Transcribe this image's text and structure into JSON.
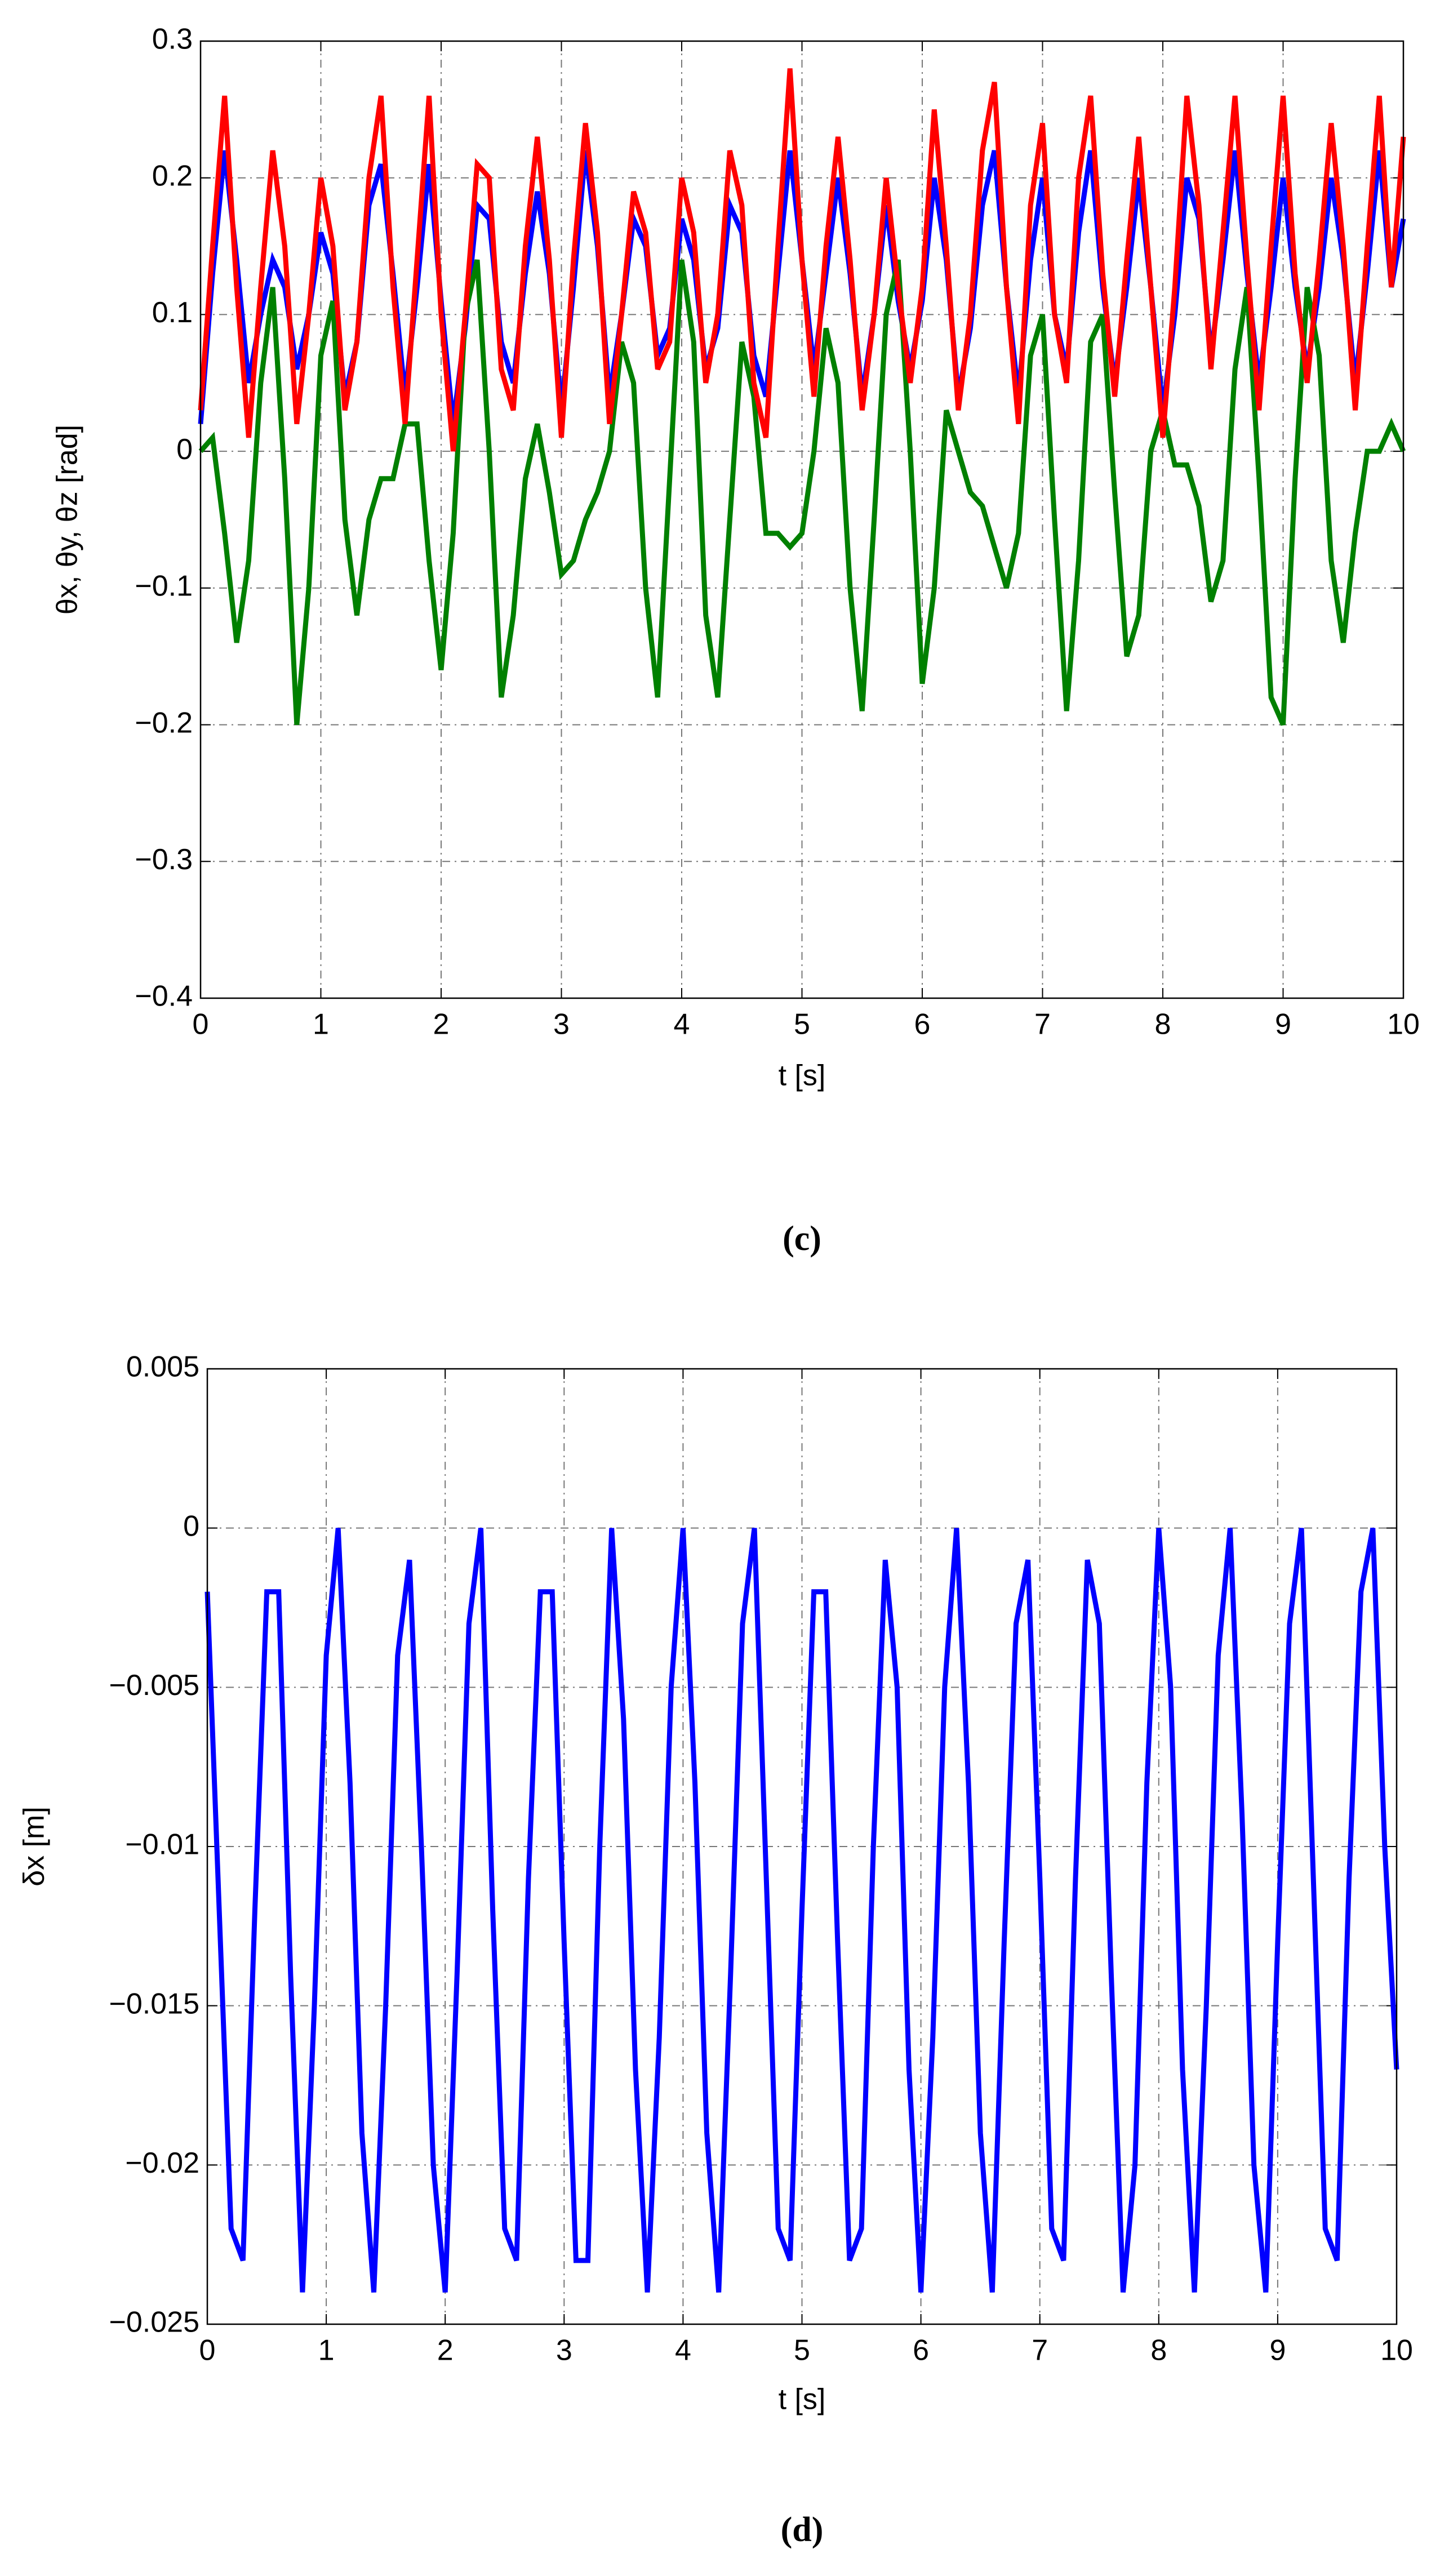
{
  "chart_data": [
    {
      "type": "line",
      "caption": "(c)",
      "xlabel": "t [s]",
      "ylabel": "θx, θy, θz [rad]",
      "xlim": [
        0,
        10
      ],
      "xticks": [
        0,
        1,
        2,
        3,
        4,
        5,
        6,
        7,
        8,
        9,
        10
      ],
      "ylim": [
        -0.4,
        0.3
      ],
      "yticks": [
        {
          "value": -0.4,
          "label": "−0.4"
        },
        {
          "value": -0.3,
          "label": "−0.3"
        },
        {
          "value": -0.2,
          "label": "−0.2"
        },
        {
          "value": -0.1,
          "label": "−0.1"
        },
        0,
        0.1,
        0.2,
        0.3
      ],
      "grid": true,
      "x": [
        0,
        0.1,
        0.2,
        0.3,
        0.4,
        0.5,
        0.6,
        0.7,
        0.8,
        0.9,
        1,
        1.1,
        1.2,
        1.3,
        1.4,
        1.5,
        1.6,
        1.7,
        1.8,
        1.9,
        2,
        2.1,
        2.2,
        2.3,
        2.4,
        2.5,
        2.6,
        2.7,
        2.8,
        2.9,
        3,
        3.1,
        3.2,
        3.3,
        3.4,
        3.5,
        3.6,
        3.7,
        3.8,
        3.9,
        4,
        4.1,
        4.2,
        4.3,
        4.4,
        4.5,
        4.6,
        4.7,
        4.8,
        4.9,
        5,
        5.1,
        5.2,
        5.3,
        5.4,
        5.5,
        5.6,
        5.7,
        5.8,
        5.9,
        6,
        6.1,
        6.2,
        6.3,
        6.4,
        6.5,
        6.6,
        6.7,
        6.8,
        6.9,
        7,
        7.1,
        7.2,
        7.3,
        7.4,
        7.5,
        7.6,
        7.7,
        7.8,
        7.9,
        8,
        8.1,
        8.2,
        8.3,
        8.4,
        8.5,
        8.6,
        8.7,
        8.8,
        8.9,
        9,
        9.1,
        9.2,
        9.3,
        9.4,
        9.5,
        9.6,
        9.7,
        9.8,
        9.9,
        10
      ],
      "series": [
        {
          "color": "#0000ff",
          "values": [
            0.02,
            0.13,
            0.22,
            0.14,
            0.05,
            0.1,
            0.14,
            0.12,
            0.06,
            0.1,
            0.16,
            0.13,
            0.04,
            0.08,
            0.18,
            0.21,
            0.13,
            0.04,
            0.12,
            0.21,
            0.11,
            0.02,
            0.09,
            0.18,
            0.17,
            0.08,
            0.05,
            0.13,
            0.19,
            0.13,
            0.03,
            0.12,
            0.22,
            0.15,
            0.04,
            0.1,
            0.17,
            0.15,
            0.07,
            0.09,
            0.17,
            0.14,
            0.06,
            0.09,
            0.18,
            0.16,
            0.07,
            0.04,
            0.13,
            0.22,
            0.14,
            0.06,
            0.13,
            0.2,
            0.13,
            0.04,
            0.1,
            0.18,
            0.11,
            0.06,
            0.11,
            0.2,
            0.14,
            0.04,
            0.09,
            0.18,
            0.22,
            0.12,
            0.04,
            0.14,
            0.2,
            0.1,
            0.06,
            0.16,
            0.22,
            0.12,
            0.05,
            0.12,
            0.2,
            0.12,
            0.03,
            0.1,
            0.2,
            0.17,
            0.07,
            0.14,
            0.22,
            0.13,
            0.05,
            0.12,
            0.2,
            0.12,
            0.06,
            0.12,
            0.2,
            0.14,
            0.05,
            0.13,
            0.22,
            0.12,
            0.17
          ]
        },
        {
          "color": "#008000",
          "values": [
            0,
            0.01,
            -0.06,
            -0.14,
            -0.08,
            0.05,
            0.12,
            -0.02,
            -0.2,
            -0.1,
            0.07,
            0.11,
            -0.05,
            -0.12,
            -0.05,
            -0.02,
            -0.02,
            0.02,
            0.02,
            -0.08,
            -0.16,
            -0.06,
            0.1,
            0.14,
            0,
            -0.18,
            -0.12,
            -0.02,
            0.02,
            -0.03,
            -0.09,
            -0.08,
            -0.05,
            -0.03,
            0,
            0.08,
            0.05,
            -0.1,
            -0.18,
            -0.02,
            0.14,
            0.08,
            -0.12,
            -0.18,
            -0.05,
            0.08,
            0.04,
            -0.06,
            -0.06,
            -0.07,
            -0.06,
            0,
            0.09,
            0.05,
            -0.1,
            -0.19,
            -0.05,
            0.1,
            0.14,
            0,
            -0.17,
            -0.1,
            0.03,
            0,
            -0.03,
            -0.04,
            -0.07,
            -0.1,
            -0.06,
            0.07,
            0.1,
            -0.05,
            -0.19,
            -0.08,
            0.08,
            0.1,
            -0.03,
            -0.15,
            -0.12,
            0,
            0.03,
            -0.01,
            -0.01,
            -0.04,
            -0.11,
            -0.08,
            0.06,
            0.12,
            -0.02,
            -0.18,
            -0.2,
            -0.02,
            0.12,
            0.07,
            -0.08,
            -0.14,
            -0.06,
            0,
            0,
            0.02,
            0
          ]
        },
        {
          "color": "#ff0000",
          "values": [
            0.03,
            0.15,
            0.26,
            0.12,
            0.01,
            0.12,
            0.22,
            0.15,
            0.02,
            0.1,
            0.2,
            0.15,
            0.03,
            0.08,
            0.2,
            0.26,
            0.12,
            0.02,
            0.14,
            0.26,
            0.1,
            0,
            0.1,
            0.21,
            0.2,
            0.06,
            0.03,
            0.15,
            0.23,
            0.14,
            0.01,
            0.14,
            0.24,
            0.16,
            0.02,
            0.1,
            0.19,
            0.16,
            0.06,
            0.08,
            0.2,
            0.16,
            0.05,
            0.1,
            0.22,
            0.18,
            0.05,
            0.01,
            0.15,
            0.28,
            0.14,
            0.04,
            0.15,
            0.23,
            0.14,
            0.03,
            0.1,
            0.2,
            0.12,
            0.05,
            0.12,
            0.25,
            0.15,
            0.03,
            0.1,
            0.22,
            0.27,
            0.12,
            0.02,
            0.18,
            0.24,
            0.1,
            0.05,
            0.2,
            0.26,
            0.13,
            0.04,
            0.14,
            0.23,
            0.12,
            0.01,
            0.12,
            0.26,
            0.18,
            0.06,
            0.16,
            0.26,
            0.14,
            0.03,
            0.15,
            0.26,
            0.13,
            0.05,
            0.14,
            0.24,
            0.15,
            0.03,
            0.15,
            0.26,
            0.12,
            0.23
          ]
        }
      ]
    },
    {
      "type": "line",
      "caption": "(d)",
      "xlabel": "t [s]",
      "ylabel": "δx [m]",
      "xlim": [
        0,
        10
      ],
      "xticks": [
        0,
        1,
        2,
        3,
        4,
        5,
        6,
        7,
        8,
        9,
        10
      ],
      "ylim": [
        -0.025,
        0.005
      ],
      "yticks": [
        {
          "value": -0.025,
          "label": "−0.025"
        },
        {
          "value": -0.02,
          "label": "−0.02"
        },
        {
          "value": -0.015,
          "label": "−0.015"
        },
        {
          "value": -0.01,
          "label": "−0.01"
        },
        {
          "value": -0.005,
          "label": "−0.005"
        },
        0,
        0.005
      ],
      "grid": true,
      "x": [
        0,
        0.1,
        0.2,
        0.3,
        0.4,
        0.5,
        0.6,
        0.7,
        0.8,
        0.9,
        1,
        1.1,
        1.2,
        1.3,
        1.4,
        1.5,
        1.6,
        1.7,
        1.8,
        1.9,
        2,
        2.1,
        2.2,
        2.3,
        2.4,
        2.5,
        2.6,
        2.7,
        2.8,
        2.9,
        3,
        3.1,
        3.2,
        3.3,
        3.4,
        3.5,
        3.6,
        3.7,
        3.8,
        3.9,
        4,
        4.1,
        4.2,
        4.3,
        4.4,
        4.5,
        4.6,
        4.7,
        4.8,
        4.9,
        5,
        5.1,
        5.2,
        5.3,
        5.4,
        5.5,
        5.6,
        5.7,
        5.8,
        5.9,
        6,
        6.1,
        6.2,
        6.3,
        6.4,
        6.5,
        6.6,
        6.7,
        6.8,
        6.9,
        7,
        7.1,
        7.2,
        7.3,
        7.4,
        7.5,
        7.6,
        7.7,
        7.8,
        7.9,
        8,
        8.1,
        8.2,
        8.3,
        8.4,
        8.5,
        8.6,
        8.7,
        8.8,
        8.9,
        9,
        9.1,
        9.2,
        9.3,
        9.4,
        9.5,
        9.6,
        9.7,
        9.8,
        9.9,
        10
      ],
      "series": [
        {
          "color": "#0000ff",
          "values": [
            -0.002,
            -0.012,
            -0.022,
            -0.023,
            -0.012,
            -0.002,
            -0.002,
            -0.014,
            -0.024,
            -0.015,
            -0.004,
            0,
            -0.008,
            -0.019,
            -0.024,
            -0.015,
            -0.004,
            -0.001,
            -0.01,
            -0.02,
            -0.024,
            -0.014,
            -0.003,
            0,
            -0.012,
            -0.022,
            -0.023,
            -0.011,
            -0.002,
            -0.002,
            -0.013,
            -0.023,
            -0.023,
            -0.01,
            0,
            -0.006,
            -0.017,
            -0.024,
            -0.016,
            -0.005,
            0,
            -0.008,
            -0.019,
            -0.024,
            -0.014,
            -0.003,
            0,
            -0.011,
            -0.022,
            -0.023,
            -0.012,
            -0.002,
            -0.002,
            -0.013,
            -0.023,
            -0.022,
            -0.01,
            -0.001,
            -0.005,
            -0.017,
            -0.024,
            -0.016,
            -0.005,
            0,
            -0.008,
            -0.019,
            -0.024,
            -0.013,
            -0.003,
            -0.001,
            -0.011,
            -0.022,
            -0.023,
            -0.011,
            -0.001,
            -0.003,
            -0.014,
            -0.024,
            -0.02,
            -0.008,
            0,
            -0.005,
            -0.017,
            -0.024,
            -0.015,
            -0.004,
            0,
            -0.009,
            -0.02,
            -0.024,
            -0.013,
            -0.003,
            0,
            -0.011,
            -0.022,
            -0.023,
            -0.011,
            -0.002,
            0,
            -0.01,
            -0.017
          ]
        }
      ]
    }
  ]
}
